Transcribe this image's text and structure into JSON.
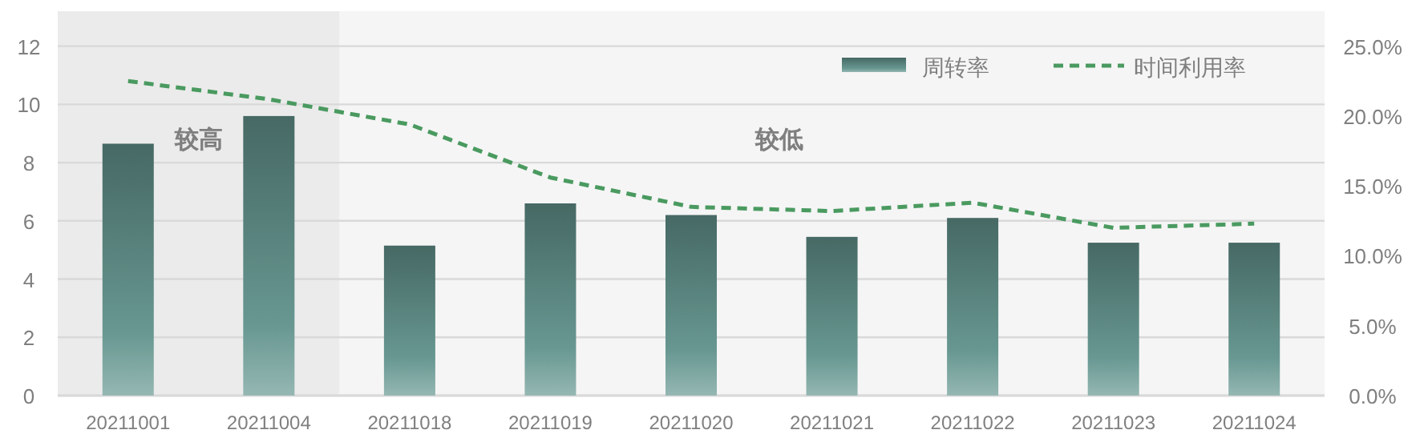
{
  "chart_data": {
    "type": "bar",
    "categories": [
      "20211001",
      "20211004",
      "20211018",
      "20211019",
      "20211020",
      "20211021",
      "20211022",
      "20211023",
      "20211024"
    ],
    "series": [
      {
        "name": "周转率",
        "color": "#5e8c86",
        "values": [
          8.65,
          9.6,
          5.15,
          6.6,
          6.2,
          5.45,
          6.1,
          5.25,
          5.25
        ]
      },
      {
        "name": "时间利用率",
        "type": "line",
        "axis": "y2",
        "color": "#4a9a60",
        "line_style": "dashed",
        "values": [
          22.5,
          21.2,
          19.4,
          15.6,
          13.5,
          13.2,
          13.8,
          12.0,
          12.3
        ]
      }
    ],
    "ylim": [
      0,
      13.2
    ],
    "yticks": [
      0,
      2,
      4,
      6,
      8,
      10,
      12
    ],
    "y2lim": [
      0,
      27.5
    ],
    "y2ticks": [
      {
        "value": 0,
        "label": "0.0%"
      },
      {
        "value": 5,
        "label": "5.0%"
      },
      {
        "value": 10,
        "label": "10.0%"
      },
      {
        "value": 15,
        "label": "15.0%"
      },
      {
        "value": 20,
        "label": "20.0%"
      },
      {
        "value": 25,
        "label": "25.0%"
      }
    ],
    "bands": [
      {
        "axis": "x",
        "from": "20211001",
        "to": "20211004",
        "label": "较高",
        "color": "#ebebeb"
      }
    ],
    "annotations": [
      "较低"
    ],
    "grid": "y",
    "legend": "top right"
  }
}
